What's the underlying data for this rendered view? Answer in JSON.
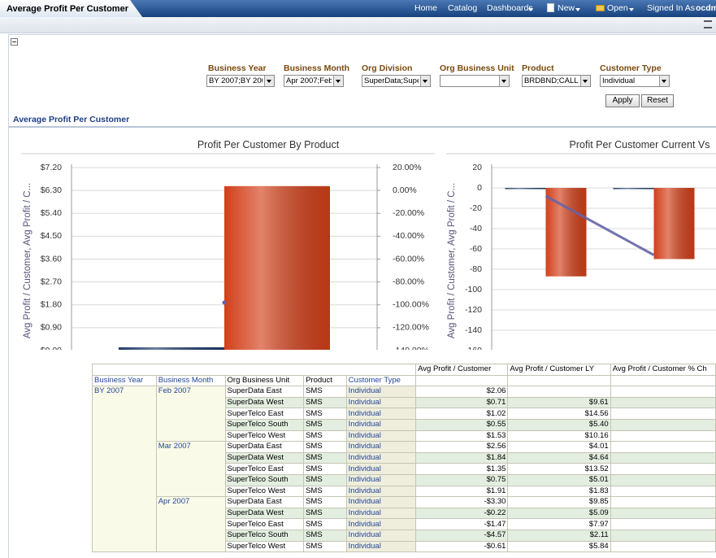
{
  "header": {
    "tab_title": "Average Profit Per Customer",
    "nav": [
      "Home",
      "Catalog",
      "Dashboards",
      "New",
      "Open",
      "Signed In As",
      "ocdm"
    ]
  },
  "prompts": [
    {
      "label": "Business Year",
      "value": "BY 2007;BY 200"
    },
    {
      "label": "Business Month",
      "value": "Apr 2007;Feb 2"
    },
    {
      "label": "Org Division",
      "value": "SuperData;Supe"
    },
    {
      "label": "Org Business Unit"
    },
    {
      "label": "Product",
      "value": "BRDBND;CALL"
    },
    {
      "label": "Customer Type",
      "value": "Individual"
    }
  ],
  "buttons": [
    "Apply",
    "Reset"
  ],
  "section_title": "Average Profit Per Customer",
  "chart_data": [
    {
      "type": "bar",
      "title": "Profit Per Customer By Product",
      "y_label": "Avg Profit / Customer, Avg Profit / C...",
      "categories": [
        null
      ],
      "series": [
        {
          "color": "#1f3c6a",
          "values": [
            0.13
          ]
        },
        {
          "color": "#d2401a",
          "values": [
            6.47
          ]
        },
        {
          "type": "line",
          "axis": "y2",
          "color": "#6464a8",
          "values": [
            -98
          ]
        }
      ],
      "ylim": [
        0,
        7.2
      ],
      "yticks": [
        {
          "value": 0,
          "label": "$0.00"
        },
        {
          "value": 0.9,
          "label": "$0.90"
        },
        {
          "value": 1.8,
          "label": "$1.80"
        },
        {
          "value": 2.7,
          "label": "$2.70"
        },
        {
          "value": 3.6,
          "label": "$3.60"
        },
        {
          "value": 4.5,
          "label": "$4.50"
        },
        {
          "value": 5.4,
          "label": "$5.40"
        },
        {
          "value": 6.3,
          "label": "$6.30"
        },
        {
          "value": 7.2,
          "label": "$7.20"
        }
      ],
      "y2lim": [
        -140,
        20
      ],
      "y2ticks": [
        {
          "value": -140,
          "label": "-140.00%"
        },
        {
          "value": -120,
          "label": "-120.00%"
        },
        {
          "value": -100,
          "label": "-100.00%"
        },
        {
          "value": -80,
          "label": "-80.00%"
        },
        {
          "value": -60,
          "label": "-60.00%"
        },
        {
          "value": -40,
          "label": "-40.00%"
        },
        {
          "value": -20,
          "label": "-20.00%"
        },
        {
          "value": 0,
          "label": "0.00%"
        },
        {
          "value": 20,
          "label": "20.00%"
        }
      ],
      "grid": true
    },
    {
      "type": "bar",
      "title": "Profit Per Customer Current Vs",
      "y_label": "Avg Profit / Customer, Avg Profit / C...",
      "categories": [
        null,
        null
      ],
      "series": [
        {
          "color": "#1f3c6a",
          "values": [
            -1,
            -1
          ]
        },
        {
          "color": "#d2401a",
          "values": [
            -87,
            -70
          ]
        },
        {
          "type": "line",
          "color": "#6464a8",
          "values": [
            -8,
            -66
          ]
        }
      ],
      "ylim": [
        -160,
        20
      ],
      "yticks": [
        -160,
        -140,
        -120,
        -100,
        -80,
        -60,
        -40,
        -20,
        0,
        20
      ],
      "grid": true
    }
  ],
  "table": {
    "measure_headers": [
      "Avg Profit / Customer",
      "Avg Profit / Customer LY",
      "Avg Profit / Customer % Ch"
    ],
    "dim_headers": [
      "Business Year",
      "Business Month",
      "Org Business Unit",
      "Product",
      "Customer Type"
    ],
    "year": "BY 2007",
    "groups": [
      {
        "month": "Feb 2007",
        "rows": [
          [
            "SuperData East",
            "SMS",
            "Individual",
            "$2.06",
            null
          ],
          [
            "SuperData West",
            "SMS",
            "Individual",
            "$0.71",
            "$9.61"
          ],
          [
            "SuperTelco East",
            "SMS",
            "Individual",
            "$1.02",
            "$14.56"
          ],
          [
            "SuperTelco South",
            "SMS",
            "Individual",
            "$0.55",
            "$5.40"
          ],
          [
            "SuperTelco West",
            "SMS",
            "Individual",
            "$1.53",
            "$10.16"
          ]
        ]
      },
      {
        "month": "Mar 2007",
        "rows": [
          [
            "SuperData East",
            "SMS",
            "Individual",
            "$2.56",
            "$4.01"
          ],
          [
            "SuperData West",
            "SMS",
            "Individual",
            "$1.84",
            "$4.64"
          ],
          [
            "SuperTelco East",
            "SMS",
            "Individual",
            "$1.35",
            "$13.52"
          ],
          [
            "SuperTelco South",
            "SMS",
            "Individual",
            "$0.75",
            "$5.01"
          ],
          [
            "SuperTelco West",
            "SMS",
            "Individual",
            "$1.91",
            "$1.83"
          ]
        ]
      },
      {
        "month": "Apr 2007",
        "rows": [
          [
            "SuperData East",
            "SMS",
            "Individual",
            "-$3.30",
            "$9.85"
          ],
          [
            "SuperData West",
            "SMS",
            "Individual",
            "-$0.22",
            "$5.09"
          ],
          [
            "SuperTelco East",
            "SMS",
            "Individual",
            "-$1.47",
            "$7.97"
          ],
          [
            "SuperTelco South",
            "SMS",
            "Individual",
            "-$4.57",
            "$2.11"
          ],
          [
            "SuperTelco West",
            "SMS",
            "Individual",
            "-$0.61",
            "$5.84"
          ]
        ]
      }
    ]
  }
}
